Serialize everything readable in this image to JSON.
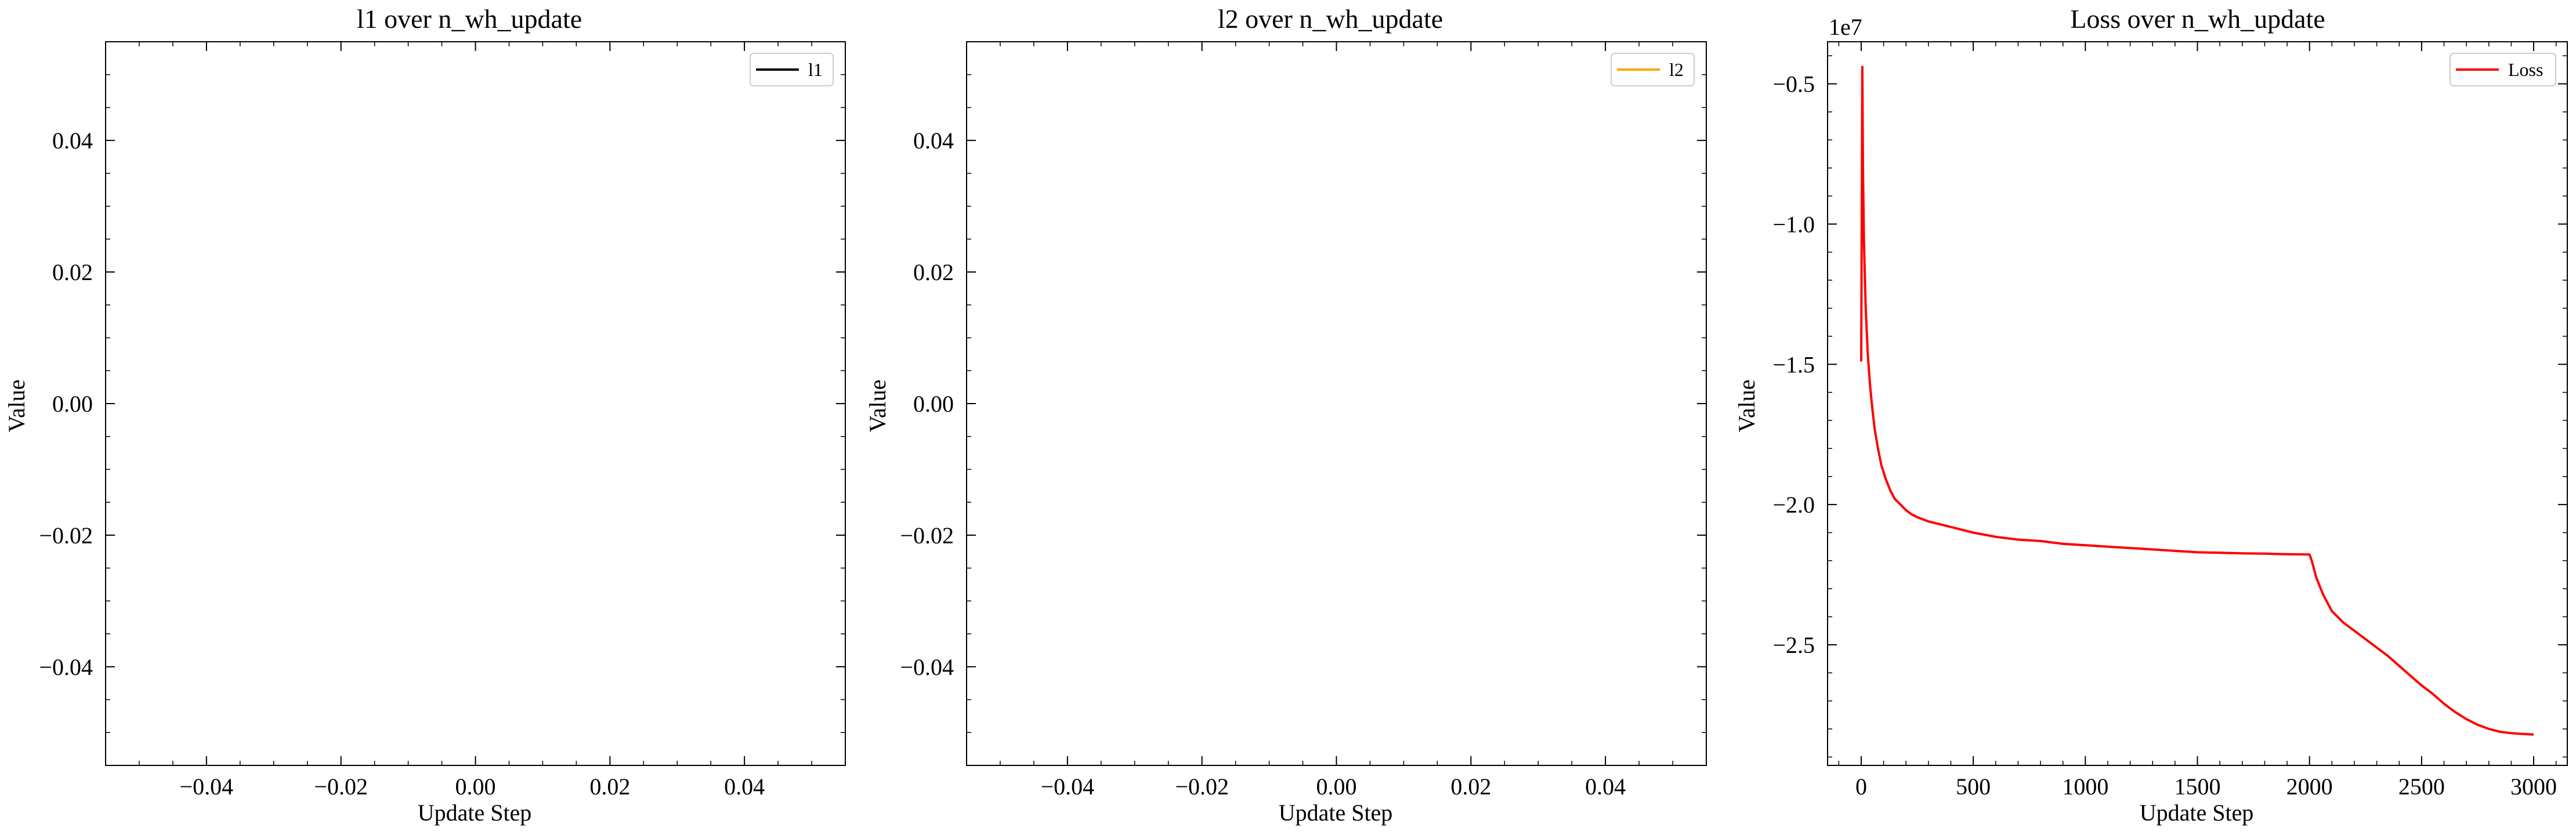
{
  "chart_data": [
    {
      "type": "line",
      "title": "l1 over n_wh_update",
      "xlabel": "Update Step",
      "ylabel": "Value",
      "xlim": [
        -0.055,
        0.055
      ],
      "ylim": [
        -0.055,
        0.055
      ],
      "xticks": [
        -0.04,
        -0.02,
        0.0,
        0.02,
        0.04
      ],
      "xtick_labels": [
        "−0.04",
        "−0.02",
        "0.00",
        "0.02",
        "0.04"
      ],
      "yticks": [
        -0.04,
        -0.02,
        0.0,
        0.02,
        0.04
      ],
      "ytick_labels": [
        "−0.04",
        "−0.02",
        "0.00",
        "0.02",
        "0.04"
      ],
      "grid": false,
      "legend": "top-right",
      "series": [
        {
          "name": "l1",
          "color": "#000000",
          "x": [],
          "y": []
        }
      ]
    },
    {
      "type": "line",
      "title": "l2 over n_wh_update",
      "xlabel": "Update Step",
      "ylabel": "Value",
      "xlim": [
        -0.055,
        0.055
      ],
      "ylim": [
        -0.055,
        0.055
      ],
      "xticks": [
        -0.04,
        -0.02,
        0.0,
        0.02,
        0.04
      ],
      "xtick_labels": [
        "−0.04",
        "−0.02",
        "0.00",
        "0.02",
        "0.04"
      ],
      "yticks": [
        -0.04,
        -0.02,
        0.0,
        0.02,
        0.04
      ],
      "ytick_labels": [
        "−0.04",
        "−0.02",
        "0.00",
        "0.02",
        "0.04"
      ],
      "grid": false,
      "legend": "top-right",
      "series": [
        {
          "name": "l2",
          "color": "#ffa500",
          "x": [],
          "y": []
        }
      ]
    },
    {
      "type": "line",
      "title": "Loss over n_wh_update",
      "xlabel": "Update Step",
      "ylabel": "Value",
      "offset_label": "1e7",
      "xlim": [
        -150,
        3150
      ],
      "ylim": [
        -2.93,
        -0.35
      ],
      "xticks": [
        0,
        500,
        1000,
        1500,
        2000,
        2500,
        3000
      ],
      "xtick_labels": [
        "0",
        "500",
        "1000",
        "1500",
        "2000",
        "2500",
        "3000"
      ],
      "yticks": [
        -2.5,
        -2.0,
        -1.5,
        -1.0,
        -0.5
      ],
      "ytick_labels": [
        "−2.5",
        "−2.0",
        "−1.5",
        "−1.0",
        "−0.5"
      ],
      "grid": false,
      "legend": "top-right",
      "series": [
        {
          "name": "Loss",
          "color": "#ff0000",
          "x": [
            0,
            5,
            8,
            12,
            20,
            30,
            40,
            50,
            60,
            75,
            90,
            110,
            130,
            150,
            175,
            200,
            225,
            250,
            300,
            350,
            400,
            500,
            600,
            700,
            800,
            900,
            1000,
            1100,
            1200,
            1300,
            1400,
            1500,
            1600,
            1700,
            1800,
            1900,
            2000,
            2010,
            2030,
            2060,
            2100,
            2150,
            2200,
            2250,
            2300,
            2350,
            2400,
            2450,
            2500,
            2550,
            2600,
            2650,
            2700,
            2750,
            2800,
            2850,
            2900,
            2950,
            3000
          ],
          "y": [
            -1.49,
            -0.44,
            -0.8,
            -1.05,
            -1.3,
            -1.47,
            -1.58,
            -1.66,
            -1.73,
            -1.8,
            -1.86,
            -1.91,
            -1.95,
            -1.98,
            -2.0,
            -2.02,
            -2.035,
            -2.045,
            -2.06,
            -2.07,
            -2.08,
            -2.1,
            -2.115,
            -2.125,
            -2.13,
            -2.14,
            -2.145,
            -2.15,
            -2.155,
            -2.16,
            -2.165,
            -2.17,
            -2.172,
            -2.174,
            -2.175,
            -2.177,
            -2.178,
            -2.2,
            -2.26,
            -2.32,
            -2.38,
            -2.42,
            -2.45,
            -2.48,
            -2.51,
            -2.54,
            -2.575,
            -2.61,
            -2.645,
            -2.675,
            -2.71,
            -2.74,
            -2.765,
            -2.785,
            -2.8,
            -2.81,
            -2.815,
            -2.818,
            -2.82
          ]
        }
      ]
    }
  ]
}
